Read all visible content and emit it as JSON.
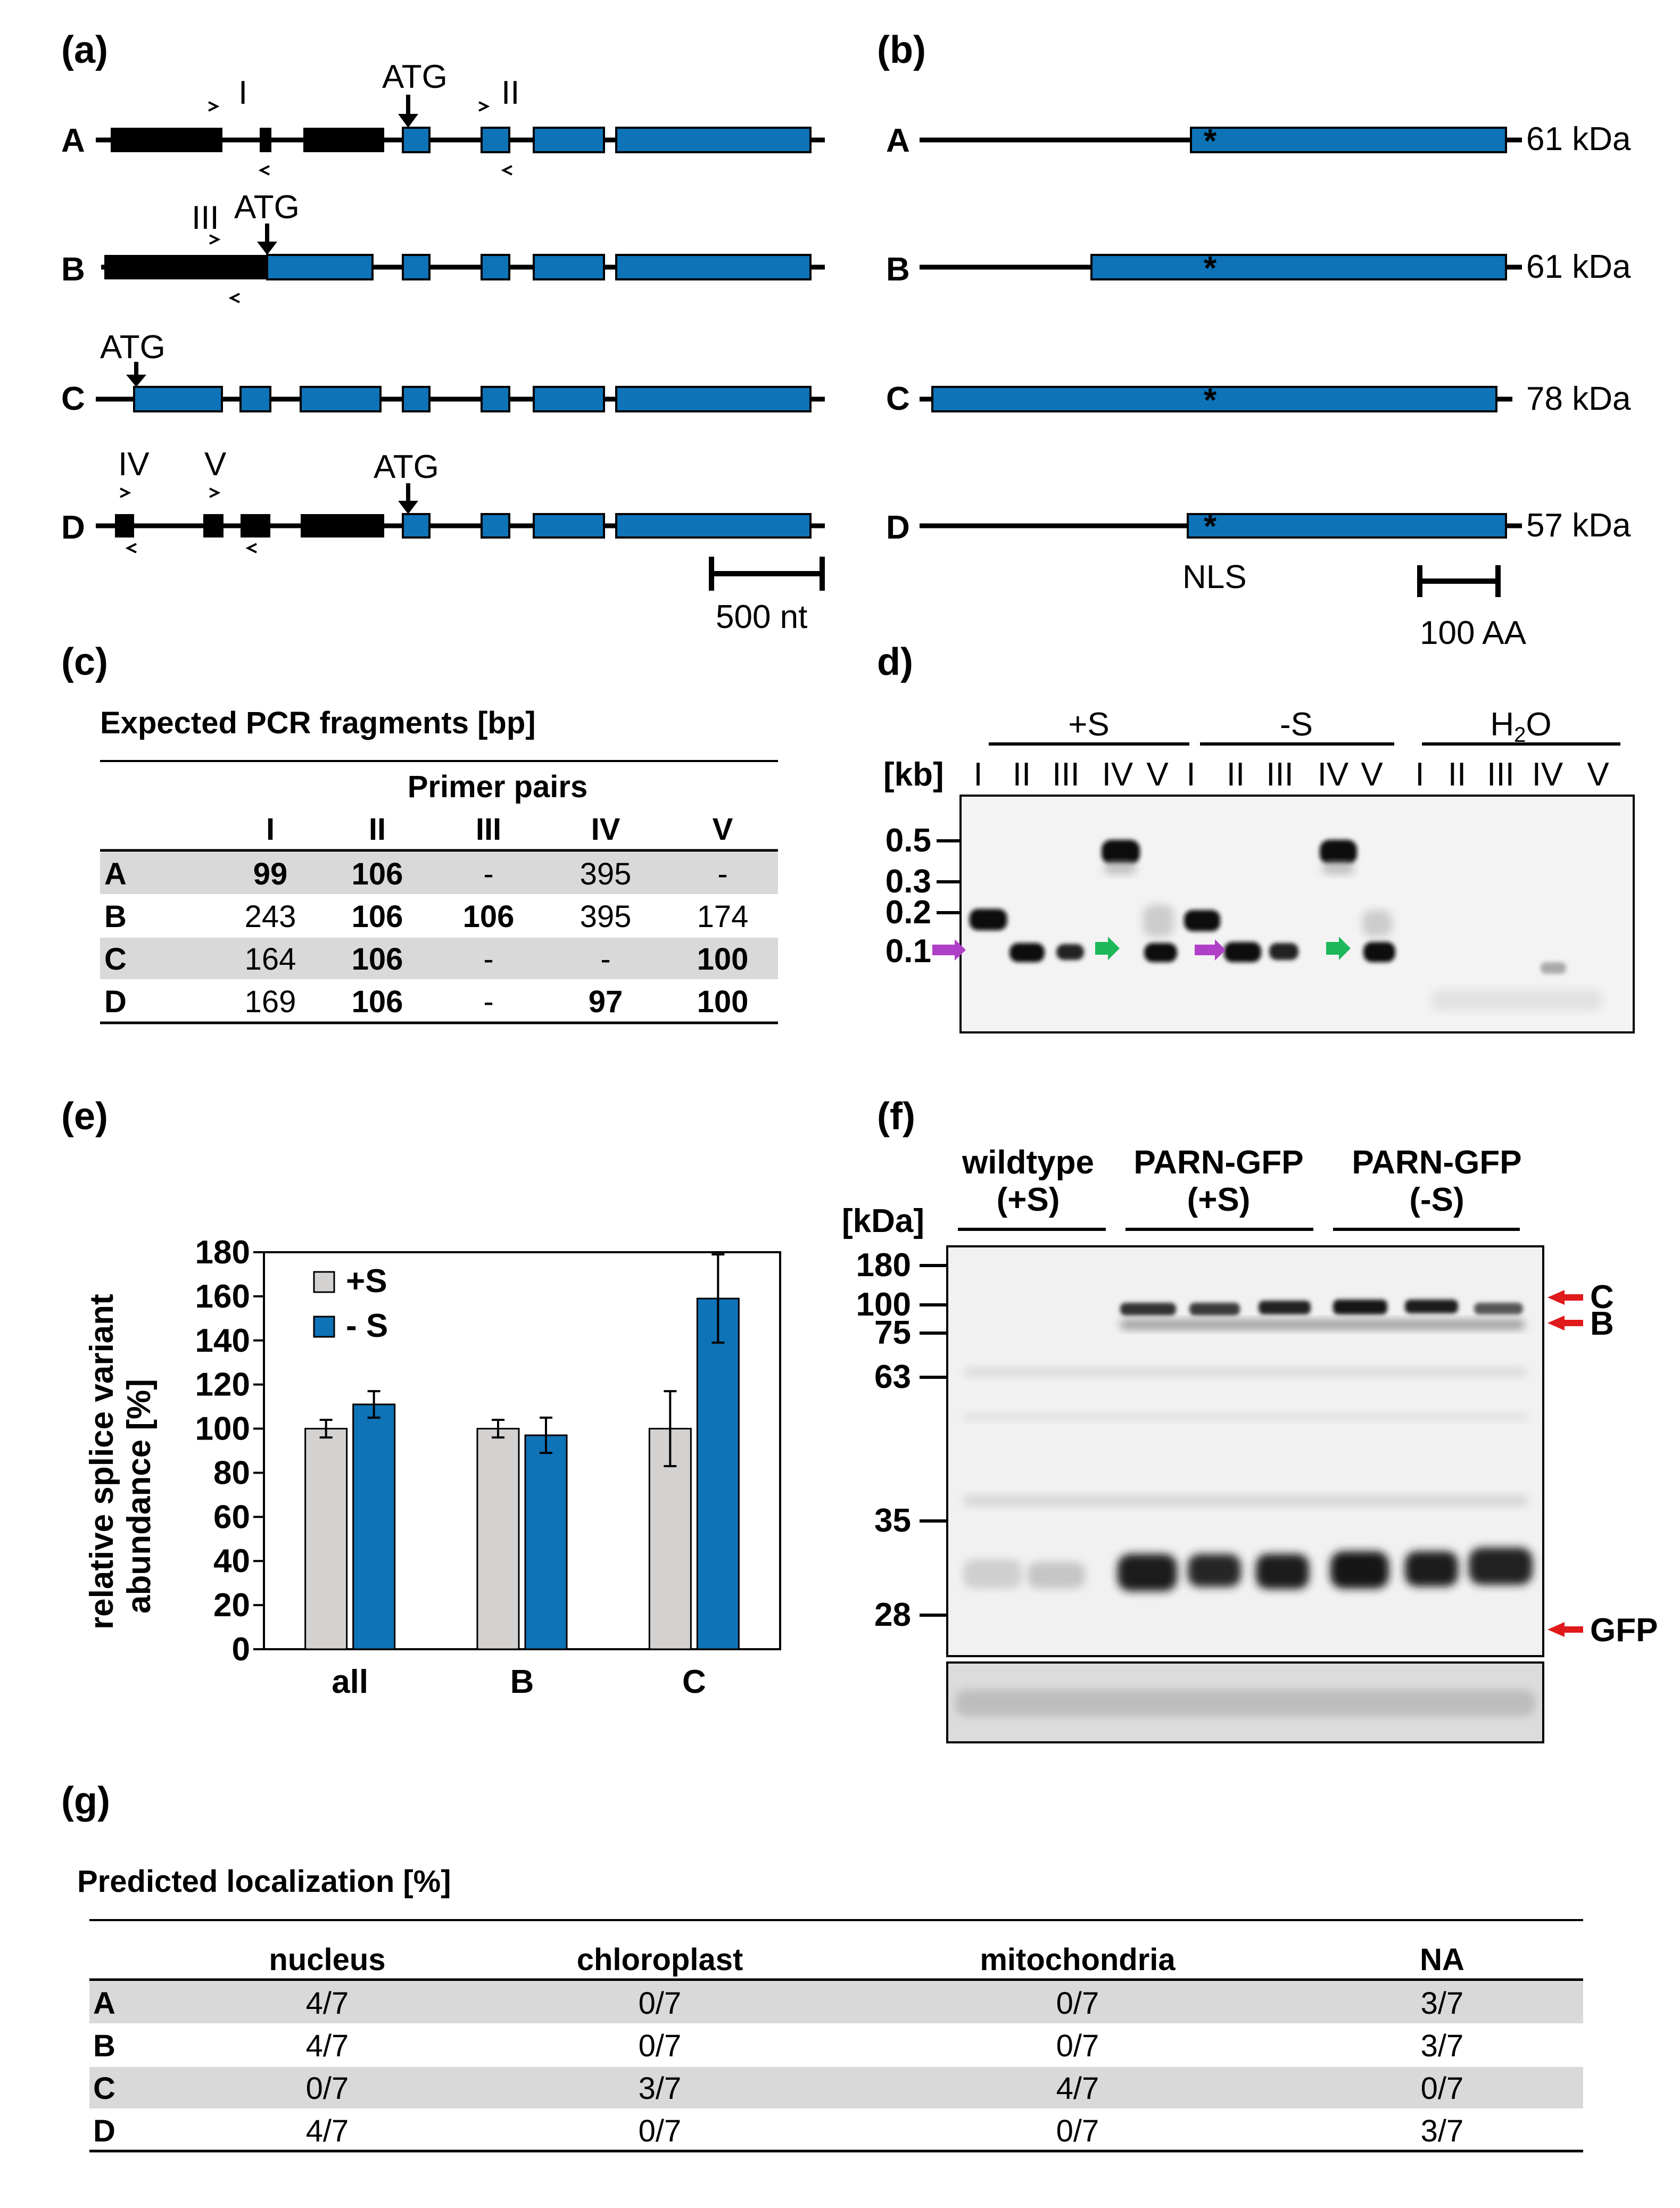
{
  "panels": {
    "a": {
      "label": "(a)",
      "rows": [
        "A",
        "B",
        "C",
        "D"
      ],
      "atg": "ATG",
      "primers": [
        "I",
        "II",
        "III",
        "IV",
        "V"
      ],
      "scale": "500 nt"
    },
    "b": {
      "label": "(b)",
      "rows": [
        {
          "name": "A",
          "kda": "61 kDa"
        },
        {
          "name": "B",
          "kda": "61 kDa"
        },
        {
          "name": "C",
          "kda": "78 kDa"
        },
        {
          "name": "D",
          "kda": "57 kDa"
        }
      ],
      "marker": "*",
      "nls": "NLS",
      "scale": "100 AA"
    },
    "c": {
      "label": "(c)",
      "title": "Expected PCR fragments [bp]",
      "group_header": "Primer pairs",
      "columns": [
        "I",
        "II",
        "III",
        "IV",
        "V"
      ],
      "rows": [
        {
          "name": "A",
          "cells": [
            "99",
            "106",
            "-",
            "395",
            "-"
          ],
          "bold": [
            true,
            true,
            false,
            false,
            false
          ]
        },
        {
          "name": "B",
          "cells": [
            "243",
            "106",
            "106",
            "395",
            "174"
          ],
          "bold": [
            false,
            true,
            true,
            false,
            false
          ]
        },
        {
          "name": "C",
          "cells": [
            "164",
            "106",
            "-",
            "-",
            "100"
          ],
          "bold": [
            false,
            true,
            false,
            false,
            true
          ]
        },
        {
          "name": "D",
          "cells": [
            "169",
            "106",
            "-",
            "97",
            "100"
          ],
          "bold": [
            false,
            true,
            false,
            true,
            true
          ]
        }
      ]
    },
    "d": {
      "label": "d)",
      "groups": [
        "+S",
        "-S",
        "H2O"
      ],
      "h2o_base": "H",
      "h2o_sub": "2",
      "h2o_tail": "O",
      "unit": "[kb]",
      "lanes": [
        "I",
        "II",
        "III",
        "IV",
        "V"
      ],
      "markers": [
        "0.5",
        "0.3",
        "0.2",
        "0.1"
      ],
      "arrow_colors": {
        "magenta": "#b03fc8",
        "green": "#1db85a"
      }
    },
    "e": {
      "label": "(e)",
      "ylabel_line1": "relative splice variant",
      "ylabel_line2": "abundance [%]",
      "legend": [
        "+S",
        "- S"
      ]
    },
    "f": {
      "label": "(f)",
      "groups": [
        {
          "line1": "wildtype",
          "line2": "(+S)"
        },
        {
          "line1": "PARN-GFP",
          "line2": "(+S)"
        },
        {
          "line1": "PARN-GFP",
          "line2": "(-S)"
        }
      ],
      "unit": "[kDa]",
      "markers": [
        "180",
        "100",
        "75",
        "63",
        "35",
        "28"
      ],
      "bands": [
        "C",
        "B",
        "GFP"
      ],
      "arrow_color": "#e0191b"
    },
    "g": {
      "label": "(g)",
      "title": "Predicted localization [%]",
      "columns": [
        "nucleus",
        "chloroplast",
        "mitochondria",
        "NA"
      ],
      "rows": [
        {
          "name": "A",
          "cells": [
            "4/7",
            "0/7",
            "0/7",
            "3/7"
          ]
        },
        {
          "name": "B",
          "cells": [
            "4/7",
            "0/7",
            "0/7",
            "3/7"
          ]
        },
        {
          "name": "C",
          "cells": [
            "0/7",
            "3/7",
            "4/7",
            "0/7"
          ]
        },
        {
          "name": "D",
          "cells": [
            "4/7",
            "0/7",
            "0/7",
            "3/7"
          ]
        }
      ]
    }
  },
  "colors": {
    "exon_blue": "#0f73b8",
    "bar_grey": "#d4d1d1",
    "row_shade": "#d9d9d9",
    "arrow_red": "#e0191b"
  },
  "chart_data": {
    "type": "bar",
    "categories": [
      "all",
      "B",
      "C"
    ],
    "series": [
      {
        "name": "+S",
        "values": [
          100,
          100,
          100
        ],
        "errors": [
          4,
          4,
          17
        ],
        "color": "#d4d1d1"
      },
      {
        "name": "- S",
        "values": [
          111,
          97,
          159
        ],
        "errors": [
          6,
          8,
          20
        ],
        "color": "#0f73b8"
      }
    ],
    "yticks": [
      0,
      20,
      40,
      60,
      80,
      100,
      120,
      140,
      160,
      180
    ],
    "ylim": [
      0,
      180
    ],
    "xlabel": "",
    "ylabel": "relative splice variant abundance [%]",
    "legend": "top-left",
    "grid": false
  }
}
